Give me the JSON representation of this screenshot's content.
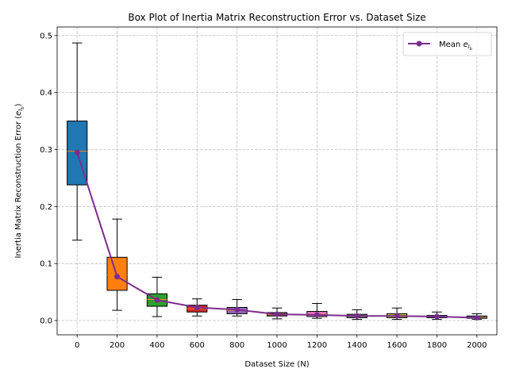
{
  "chart_data": {
    "type": "box",
    "title": "Box Plot of Inertia Matrix Reconstruction Error vs. Dataset Size",
    "xlabel": "Dataset Size (N)",
    "ylabel_main": "Inertia Matrix Reconstruction Error (",
    "ylabel_sym": "e",
    "ylabel_sub1": "I",
    "ylabel_sub2": "b",
    "ylabel_close": ")",
    "categories": [
      "0",
      "200",
      "400",
      "600",
      "800",
      "1000",
      "1200",
      "1400",
      "1600",
      "1800",
      "2000"
    ],
    "x": [
      0,
      200,
      400,
      600,
      800,
      1000,
      1200,
      1400,
      1600,
      1800,
      2000
    ],
    "xlim": [
      -100,
      2100
    ],
    "ylim": [
      -0.025,
      0.515
    ],
    "yticks": [
      0.0,
      0.1,
      0.2,
      0.3,
      0.4,
      0.5
    ],
    "ytick_labels": [
      "0.0",
      "0.1",
      "0.2",
      "0.3",
      "0.4",
      "0.5"
    ],
    "grid": true,
    "boxes": [
      {
        "x": 0,
        "whislo": 0.141,
        "q1": 0.238,
        "med": 0.297,
        "q3": 0.35,
        "whishi": 0.487,
        "color": "#1f77b4"
      },
      {
        "x": 200,
        "whislo": 0.018,
        "q1": 0.053,
        "med": 0.08,
        "q3": 0.111,
        "whishi": 0.178,
        "color": "#ff7f0e"
      },
      {
        "x": 400,
        "whislo": 0.007,
        "q1": 0.025,
        "med": 0.037,
        "q3": 0.047,
        "whishi": 0.076,
        "color": "#2ca02c"
      },
      {
        "x": 600,
        "whislo": 0.008,
        "q1": 0.015,
        "med": 0.021,
        "q3": 0.027,
        "whishi": 0.038,
        "color": "#d62728"
      },
      {
        "x": 800,
        "whislo": 0.008,
        "q1": 0.012,
        "med": 0.018,
        "q3": 0.023,
        "whishi": 0.037,
        "color": "#9467bd"
      },
      {
        "x": 1000,
        "whislo": 0.003,
        "q1": 0.008,
        "med": 0.011,
        "q3": 0.014,
        "whishi": 0.022,
        "color": "#8c564b"
      },
      {
        "x": 1200,
        "whislo": 0.004,
        "q1": 0.007,
        "med": 0.011,
        "q3": 0.016,
        "whishi": 0.03,
        "color": "#e377c2"
      },
      {
        "x": 1400,
        "whislo": 0.002,
        "q1": 0.005,
        "med": 0.008,
        "q3": 0.011,
        "whishi": 0.019,
        "color": "#7f7f7f"
      },
      {
        "x": 1600,
        "whislo": 0.002,
        "q1": 0.005,
        "med": 0.008,
        "q3": 0.012,
        "whishi": 0.022,
        "color": "#bcbd22"
      },
      {
        "x": 1800,
        "whislo": 0.002,
        "q1": 0.005,
        "med": 0.007,
        "q3": 0.009,
        "whishi": 0.015,
        "color": "#17becf"
      },
      {
        "x": 2000,
        "whislo": 0.002,
        "q1": 0.004,
        "med": 0.006,
        "q3": 0.008,
        "whishi": 0.012,
        "color": "#1f77b4"
      }
    ],
    "series": [
      {
        "name_main": "Mean ",
        "name_sym": "e",
        "name_sub1": "I",
        "name_sub2": "b",
        "type": "line",
        "color": "#7b2d8e",
        "values": [
          0.295,
          0.077,
          0.036,
          0.023,
          0.019,
          0.011,
          0.01,
          0.008,
          0.008,
          0.007,
          0.005
        ]
      }
    ],
    "legend": "upper right"
  }
}
